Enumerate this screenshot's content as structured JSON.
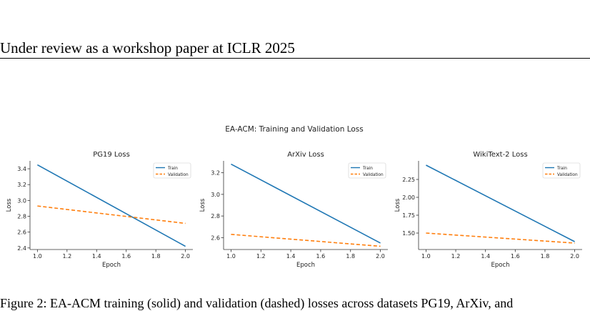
{
  "page": {
    "header": "Under review as a workshop paper at ICLR 2025",
    "footer_fragment": "Figure 2: EA-ACM training (solid) and validation (dashed) losses across datasets PG19, ArXiv, and"
  },
  "figure": {
    "suptitle": "EA-ACM: Training and Validation Loss"
  },
  "colors": {
    "train": "#1f77b4",
    "validation": "#ff7f0e"
  },
  "chart_data": [
    {
      "type": "line",
      "title": "PG19 Loss",
      "xlabel": "Epoch",
      "ylabel": "Loss",
      "xlim": [
        0.95,
        2.05
      ],
      "ylim": [
        2.38,
        3.5
      ],
      "xticks": [
        "1.0",
        "1.2",
        "1.4",
        "1.6",
        "1.8",
        "2.0"
      ],
      "yticks": [
        "2.4",
        "2.6",
        "2.8",
        "3.0",
        "3.2",
        "3.4"
      ],
      "x": [
        1.0,
        2.0
      ],
      "series": [
        {
          "name": "Train",
          "values": [
            3.45,
            2.42
          ],
          "style": "solid"
        },
        {
          "name": "Validation",
          "values": [
            2.93,
            2.71
          ],
          "style": "dashed"
        }
      ],
      "legend": "upper right",
      "grid": false
    },
    {
      "type": "line",
      "title": "ArXiv Loss",
      "xlabel": "Epoch",
      "ylabel": "Loss",
      "xlim": [
        0.95,
        2.05
      ],
      "ylim": [
        2.49,
        3.31
      ],
      "xticks": [
        "1.0",
        "1.2",
        "1.4",
        "1.6",
        "1.8",
        "2.0"
      ],
      "yticks": [
        "2.6",
        "2.8",
        "3.0",
        "3.2"
      ],
      "x": [
        1.0,
        2.0
      ],
      "series": [
        {
          "name": "Train",
          "values": [
            3.28,
            2.55
          ],
          "style": "solid"
        },
        {
          "name": "Validation",
          "values": [
            2.63,
            2.52
          ],
          "style": "dashed"
        }
      ],
      "legend": "upper right",
      "grid": false
    },
    {
      "type": "line",
      "title": "WikiText-2 Loss",
      "xlabel": "Epoch",
      "ylabel": "Loss",
      "xlim": [
        0.95,
        2.05
      ],
      "ylim": [
        1.27,
        2.51
      ],
      "xticks": [
        "1.0",
        "1.2",
        "1.4",
        "1.6",
        "1.8",
        "2.0"
      ],
      "yticks": [
        "1.50",
        "1.75",
        "2.00",
        "2.25"
      ],
      "x": [
        1.0,
        2.0
      ],
      "series": [
        {
          "name": "Train",
          "values": [
            2.45,
            1.38
          ],
          "style": "solid"
        },
        {
          "name": "Validation",
          "values": [
            1.5,
            1.36
          ],
          "style": "dashed"
        }
      ],
      "legend": "upper right",
      "grid": false
    }
  ]
}
